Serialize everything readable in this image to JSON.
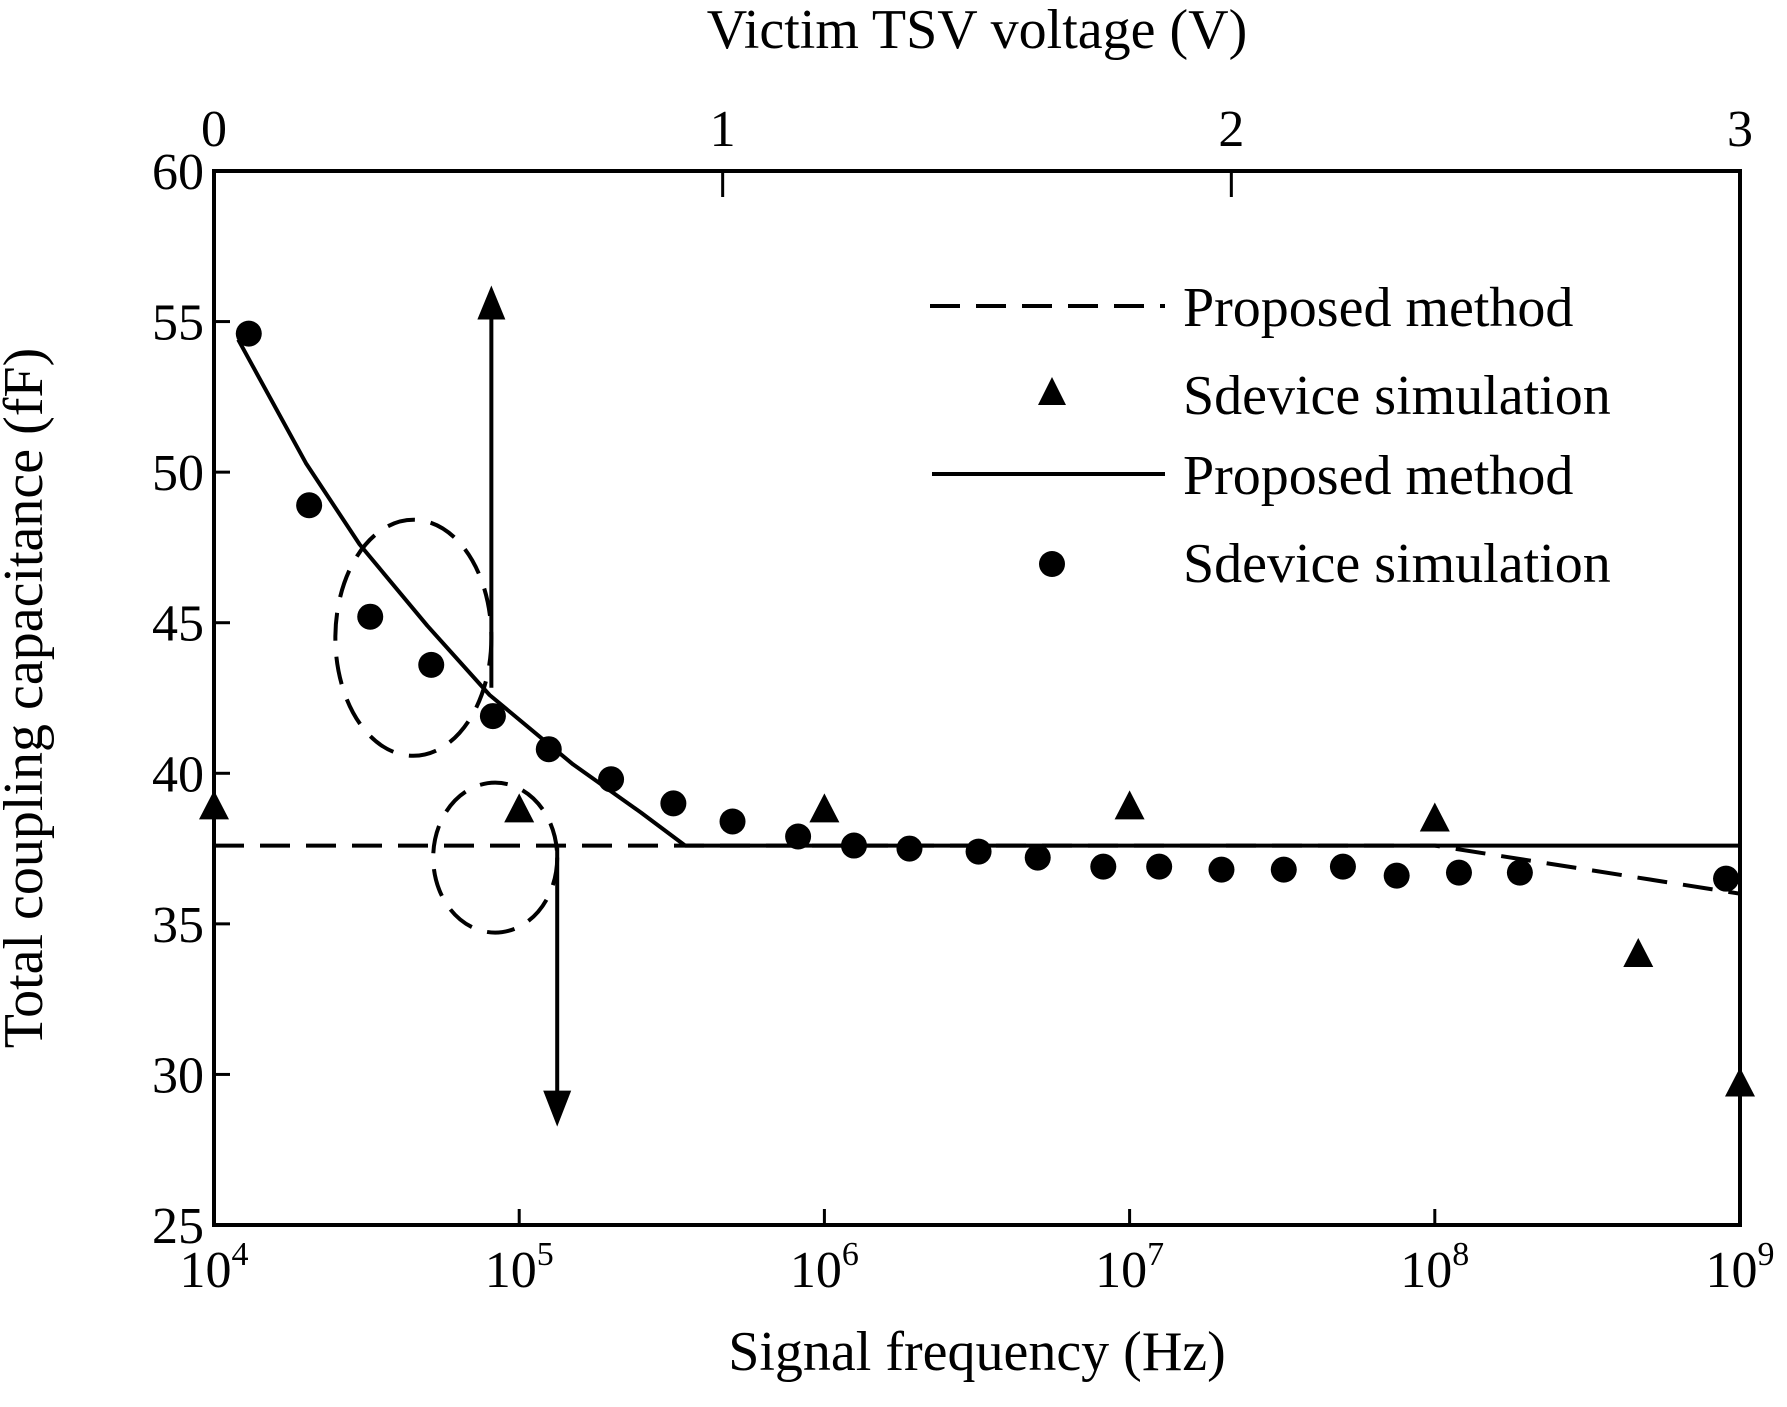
{
  "chart_data": {
    "type": "scatter",
    "title": "",
    "xlabel": "Signal frequency (Hz)",
    "x2label": "Victim TSV voltage (V)",
    "ylabel": "Total coupling capacitance (fF)",
    "xscale": "log",
    "xlim": [
      10000,
      1000000000
    ],
    "x2lim": [
      0,
      3
    ],
    "ylim": [
      25,
      60
    ],
    "xticks": [
      {
        "value": 10000,
        "base": "10",
        "exp": "4"
      },
      {
        "value": 100000,
        "base": "10",
        "exp": "5"
      },
      {
        "value": 1000000,
        "base": "10",
        "exp": "6"
      },
      {
        "value": 10000000,
        "base": "10",
        "exp": "7"
      },
      {
        "value": 100000000,
        "base": "10",
        "exp": "8"
      },
      {
        "value": 1000000000,
        "base": "10",
        "exp": "9"
      }
    ],
    "x2ticks": [
      {
        "value": 0,
        "label": "0"
      },
      {
        "value": 1,
        "label": "1"
      },
      {
        "value": 2,
        "label": "2"
      },
      {
        "value": 3,
        "label": "3"
      }
    ],
    "yticks": [
      {
        "value": 25,
        "label": "25"
      },
      {
        "value": 30,
        "label": "30"
      },
      {
        "value": 35,
        "label": "35"
      },
      {
        "value": 40,
        "label": "40"
      },
      {
        "value": 45,
        "label": "45"
      },
      {
        "value": 50,
        "label": "50"
      },
      {
        "value": 55,
        "label": "55"
      },
      {
        "value": 60,
        "label": "60"
      }
    ],
    "grid": false,
    "legend_position": "top-right",
    "series": [
      {
        "name": "Proposed method",
        "axis": "top",
        "style": "dashed-line",
        "x": [
          0,
          0.95,
          2.4,
          3.0
        ],
        "y": [
          37.6,
          37.6,
          37.6,
          36.0
        ]
      },
      {
        "name": "Sdevice simulation",
        "axis": "top",
        "style": "triangle-marker",
        "x": [
          0.0,
          0.6,
          1.2,
          1.8,
          2.4,
          2.8,
          3.0
        ],
        "y": [
          38.9,
          38.8,
          38.8,
          38.9,
          38.5,
          34.0,
          29.7
        ]
      },
      {
        "name": "Proposed method",
        "axis": "bottom",
        "style": "solid-line",
        "x": [
          12000,
          20000,
          30000,
          50000,
          80000,
          150000,
          250000,
          350000,
          1000000,
          10000000,
          100000000,
          1000000000
        ],
        "y": [
          54.4,
          50.3,
          47.6,
          44.9,
          42.6,
          40.3,
          38.7,
          37.6,
          37.6,
          37.6,
          37.6,
          37.6
        ]
      },
      {
        "name": "Sdevice simulation",
        "axis": "bottom",
        "style": "circle-marker",
        "x": [
          13000,
          20500,
          32500,
          51500,
          82000,
          125000,
          200000,
          320000,
          500000,
          820000,
          1250000,
          1900000,
          3200000,
          5000000,
          8200000,
          12500000,
          20000000,
          32000000,
          50000000,
          75000000,
          120000000,
          190000000,
          900000000
        ],
        "y": [
          54.6,
          48.9,
          45.2,
          43.6,
          41.9,
          40.8,
          39.8,
          39.0,
          38.4,
          37.9,
          37.6,
          37.5,
          37.4,
          37.2,
          36.9,
          36.9,
          36.8,
          36.8,
          36.9,
          36.6,
          36.7,
          36.7,
          36.5
        ]
      }
    ],
    "annotations": [
      {
        "type": "dashed-ellipse",
        "target_series": 3,
        "center_x_hz": 45000,
        "center_y": 44.5,
        "arrow_points_to": "top"
      },
      {
        "type": "dashed-ellipse",
        "target_series": 1,
        "center_x_hz": 100000,
        "center_y": 37.2,
        "arrow_points_to": "bottom"
      }
    ]
  }
}
